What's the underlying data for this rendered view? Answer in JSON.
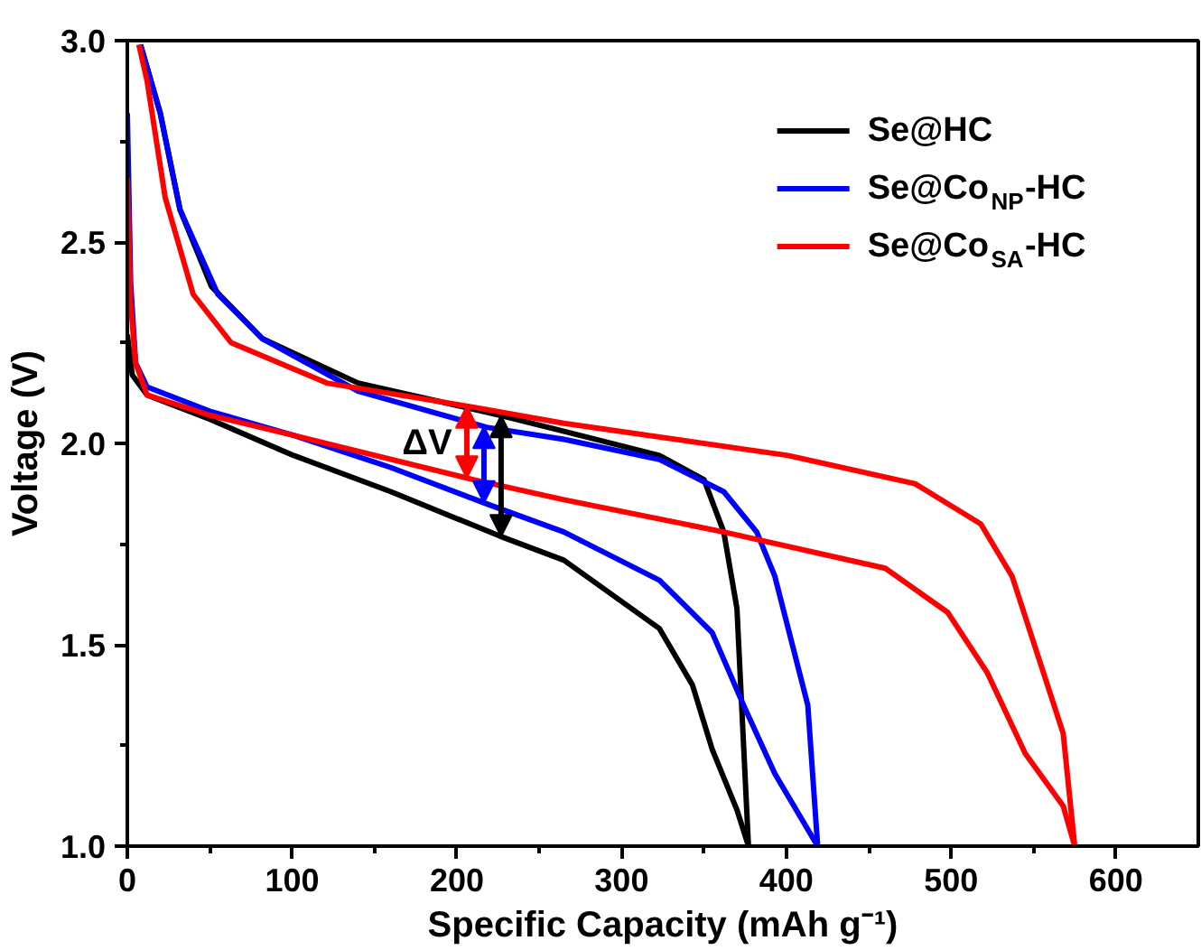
{
  "chart_data": {
    "type": "line",
    "xlabel": "Specific Capacity (mAh g⁻¹)",
    "ylabel": "Voltage (V)",
    "xlim": [
      0,
      650
    ],
    "ylim": [
      1.0,
      3.0
    ],
    "xticks": [
      0,
      100,
      200,
      300,
      400,
      500,
      600
    ],
    "yticks": [
      {
        "value": 1.0,
        "label": "1.0"
      },
      {
        "value": 1.5,
        "label": "1.5"
      },
      {
        "value": 2.0,
        "label": "2.0"
      },
      {
        "value": 2.5,
        "label": "2.5"
      },
      {
        "value": 3.0,
        "label": "3.0"
      }
    ],
    "legend": "top right",
    "line_style": "solid",
    "marker": "none",
    "annotations": [
      "ΔV"
    ],
    "series": [
      {
        "name": "Se@HC",
        "color": "#000000",
        "x": [
          0,
          3,
          12,
          50,
          101,
          160,
          226,
          265,
          323,
          343,
          355,
          370,
          377
        ],
        "values": [
          2.27,
          2.17,
          2.12,
          2.06,
          1.97,
          1.88,
          1.77,
          1.71,
          1.54,
          1.4,
          1.24,
          1.09,
          1.0
        ]
      },
      {
        "color": "#000000",
        "x": [
          377,
          370,
          362,
          350,
          323,
          265,
          226,
          140,
          82,
          51,
          32,
          20,
          8
        ],
        "values": [
          1.0,
          1.59,
          1.78,
          1.91,
          1.97,
          2.03,
          2.07,
          2.15,
          2.26,
          2.39,
          2.58,
          2.82,
          2.99
        ]
      },
      {
        "name": "Se@Co$_{NP}$-HC",
        "color": "#0000ff",
        "x": [
          0,
          2,
          5,
          12,
          50,
          101,
          160,
          218,
          265,
          323,
          355,
          374,
          393,
          419
        ],
        "values": [
          2.82,
          2.4,
          2.2,
          2.14,
          2.08,
          2.02,
          1.94,
          1.85,
          1.78,
          1.66,
          1.53,
          1.35,
          1.18,
          1.0
        ]
      },
      {
        "color": "#0000ff",
        "x": [
          419,
          413,
          393,
          382,
          362,
          323,
          265,
          218,
          140,
          82,
          55,
          32,
          20,
          8
        ],
        "values": [
          1.0,
          1.35,
          1.67,
          1.78,
          1.88,
          1.96,
          2.01,
          2.04,
          2.13,
          2.26,
          2.37,
          2.58,
          2.82,
          2.99
        ]
      },
      {
        "name": "Se@Co$_{SA}$-HC",
        "color": "#ff0000",
        "x": [
          0,
          2,
          5,
          12,
          50,
          101,
          210,
          265,
          362,
          460,
          498,
          522,
          545,
          568,
          575
        ],
        "values": [
          2.66,
          2.35,
          2.2,
          2.12,
          2.07,
          2.02,
          1.91,
          1.86,
          1.78,
          1.69,
          1.58,
          1.43,
          1.23,
          1.1,
          1.0
        ]
      },
      {
        "color": "#ff0000",
        "x": [
          575,
          568,
          537,
          518,
          478,
          401,
          265,
          210,
          121,
          63,
          40,
          23,
          12,
          7
        ],
        "values": [
          1.0,
          1.28,
          1.67,
          1.8,
          1.9,
          1.97,
          2.05,
          2.09,
          2.15,
          2.25,
          2.37,
          2.61,
          2.9,
          2.99
        ]
      }
    ]
  }
}
